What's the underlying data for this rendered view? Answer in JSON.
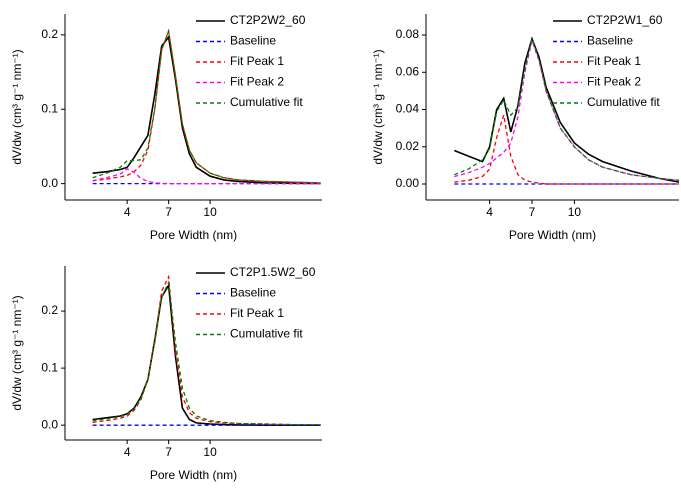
{
  "chart_data": [
    {
      "type": "line",
      "x_label": "Pore Width (nm)",
      "y_label": "dV/dw (cm³ g⁻¹ nm⁻¹)",
      "legend": "upper right",
      "x": [
        1.5,
        2.5,
        3.5,
        4,
        4.5,
        5,
        5.5,
        6,
        6.5,
        7,
        7.5,
        8,
        8.5,
        9,
        10,
        11,
        12,
        14,
        16,
        18
      ],
      "xlim": [
        -0.5,
        18.1
      ],
      "xticks": [
        4,
        7,
        10
      ],
      "ylim": [
        -0.022,
        0.228
      ],
      "yticks": [
        {
          "value": 0,
          "label": "0.0"
        },
        0.1,
        0.2
      ],
      "series": [
        {
          "name": "CT2P2W2_60",
          "color": "#000000",
          "dashed": false,
          "values": [
            0.014,
            0.016,
            0.019,
            0.022,
            0.035,
            0.05,
            0.065,
            0.12,
            0.185,
            0.197,
            0.14,
            0.075,
            0.04,
            0.022,
            0.01,
            0.005,
            0.003,
            0.001,
            0.0005,
            0.0003
          ]
        },
        {
          "name": "Baseline",
          "color": "#0000ff",
          "dashed": true,
          "values": [
            0,
            0,
            0,
            0,
            0,
            0,
            0,
            0,
            0,
            0,
            0,
            0,
            0,
            0,
            0,
            0,
            0,
            0,
            0,
            0
          ]
        },
        {
          "name": "Fit Peak 1",
          "color": "#ff0000",
          "dashed": true,
          "values": [
            0.004,
            0.006,
            0.009,
            0.011,
            0.016,
            0.025,
            0.045,
            0.1,
            0.18,
            0.205,
            0.145,
            0.08,
            0.045,
            0.028,
            0.014,
            0.008,
            0.005,
            0.003,
            0.002,
            0.001
          ]
        },
        {
          "name": "Fit Peak 2",
          "color": "#ff00ff",
          "dashed": true,
          "values": [
            0.004,
            0.008,
            0.013,
            0.02,
            0.015,
            0.007,
            0.003,
            0.001,
            0.0005,
            0,
            0,
            0,
            0,
            0,
            0,
            0,
            0,
            0,
            0,
            0
          ]
        },
        {
          "name": "Cumulative fit",
          "color": "#008000",
          "dashed": true,
          "values": [
            0.008,
            0.014,
            0.022,
            0.031,
            0.031,
            0.032,
            0.048,
            0.101,
            0.18,
            0.205,
            0.145,
            0.08,
            0.045,
            0.028,
            0.014,
            0.008,
            0.005,
            0.003,
            0.002,
            0.001
          ]
        }
      ]
    },
    {
      "type": "line",
      "x_label": "Pore Width (nm)",
      "y_label": "dV/dw (cm³ g⁻¹ nm⁻¹)",
      "legend": "upper right",
      "x": [
        1.5,
        2.5,
        3.5,
        4,
        4.5,
        5,
        5.5,
        6,
        6.5,
        7,
        7.5,
        8,
        9,
        10,
        11,
        12,
        14,
        16,
        17.4
      ],
      "xlim": [
        -0.5,
        17.4
      ],
      "xticks": [
        4,
        7,
        10
      ],
      "ylim": [
        -0.0086,
        0.0913
      ],
      "yticks": [
        {
          "value": 0,
          "label": "0.00"
        },
        {
          "value": 0.02,
          "label": "0.02"
        },
        {
          "value": 0.04,
          "label": "0.04"
        },
        {
          "value": 0.06,
          "label": "0.06"
        },
        {
          "value": 0.08,
          "label": "0.08"
        }
      ],
      "series": [
        {
          "name": "CT2P2W1_60",
          "color": "#000000",
          "dashed": false,
          "values": [
            0.018,
            0.015,
            0.012,
            0.02,
            0.04,
            0.046,
            0.028,
            0.042,
            0.065,
            0.078,
            0.068,
            0.052,
            0.033,
            0.022,
            0.016,
            0.012,
            0.007,
            0.003,
            0.001
          ]
        },
        {
          "name": "Baseline",
          "color": "#0000ff",
          "dashed": true,
          "values": [
            0,
            0,
            0,
            0,
            0,
            0,
            0,
            0,
            0,
            0,
            0,
            0,
            0,
            0,
            0,
            0,
            0,
            0,
            0
          ]
        },
        {
          "name": "Fit Peak 1",
          "color": "#ff0000",
          "dashed": true,
          "values": [
            0.001,
            0.002,
            0.004,
            0.008,
            0.025,
            0.037,
            0.015,
            0.005,
            0.002,
            0.001,
            0.0005,
            0,
            0,
            0,
            0,
            0,
            0,
            0,
            0
          ]
        },
        {
          "name": "Fit Peak 2",
          "color": "#ff00ff",
          "dashed": true,
          "values": [
            0.004,
            0.006,
            0.009,
            0.011,
            0.014,
            0.017,
            0.022,
            0.036,
            0.06,
            0.077,
            0.066,
            0.05,
            0.03,
            0.02,
            0.013,
            0.009,
            0.005,
            0.003,
            0.002
          ]
        },
        {
          "name": "Cumulative fit",
          "color": "#008000",
          "dashed": true,
          "values": [
            0.005,
            0.008,
            0.013,
            0.019,
            0.039,
            0.045,
            0.037,
            0.041,
            0.062,
            0.078,
            0.0665,
            0.05,
            0.03,
            0.02,
            0.013,
            0.009,
            0.005,
            0.003,
            0.002
          ]
        }
      ]
    },
    {
      "type": "line",
      "x_label": "Pore Width (nm)",
      "y_label": "dV/dw (cm³ g⁻¹ nm⁻¹)",
      "legend": "upper right",
      "x": [
        1.5,
        2.5,
        3.5,
        4,
        4.5,
        5,
        5.5,
        6,
        6.5,
        7,
        7.5,
        8,
        8.5,
        9,
        10,
        11,
        12,
        14,
        16,
        18
      ],
      "xlim": [
        -0.5,
        18.1
      ],
      "xticks": [
        4,
        7,
        10
      ],
      "ylim": [
        -0.026,
        0.279
      ],
      "yticks": [
        {
          "value": 0,
          "label": "0.0"
        },
        0.1,
        0.2
      ],
      "series": [
        {
          "name": "CT2P1.5W2_60",
          "color": "#000000",
          "dashed": false,
          "values": [
            0.01,
            0.013,
            0.016,
            0.02,
            0.03,
            0.05,
            0.08,
            0.15,
            0.225,
            0.245,
            0.12,
            0.03,
            0.01,
            0.004,
            0.002,
            0.001,
            0.0005,
            0,
            0,
            0
          ]
        },
        {
          "name": "Baseline",
          "color": "#0000ff",
          "dashed": true,
          "values": [
            0,
            0,
            0,
            0,
            0,
            0,
            0,
            0,
            0,
            0,
            0,
            0,
            0,
            0,
            0,
            0,
            0,
            0,
            0,
            0
          ]
        },
        {
          "name": "Fit Peak 1",
          "color": "#ff0000",
          "dashed": true,
          "values": [
            0.005,
            0.008,
            0.012,
            0.016,
            0.026,
            0.045,
            0.08,
            0.15,
            0.235,
            0.26,
            0.13,
            0.05,
            0.022,
            0.012,
            0.006,
            0.004,
            0.003,
            0.002,
            0.001,
            0.001
          ]
        },
        {
          "name": "Cumulative fit",
          "color": "#008000",
          "dashed": true,
          "values": [
            0.008,
            0.011,
            0.015,
            0.019,
            0.028,
            0.047,
            0.08,
            0.145,
            0.225,
            0.25,
            0.145,
            0.065,
            0.03,
            0.016,
            0.008,
            0.005,
            0.003,
            0.002,
            0.001,
            0.001
          ]
        }
      ]
    }
  ]
}
